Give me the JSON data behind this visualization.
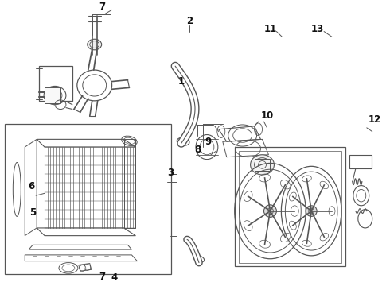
{
  "bg_color": "#ffffff",
  "line_color": "#555555",
  "label_color": "#111111"
}
